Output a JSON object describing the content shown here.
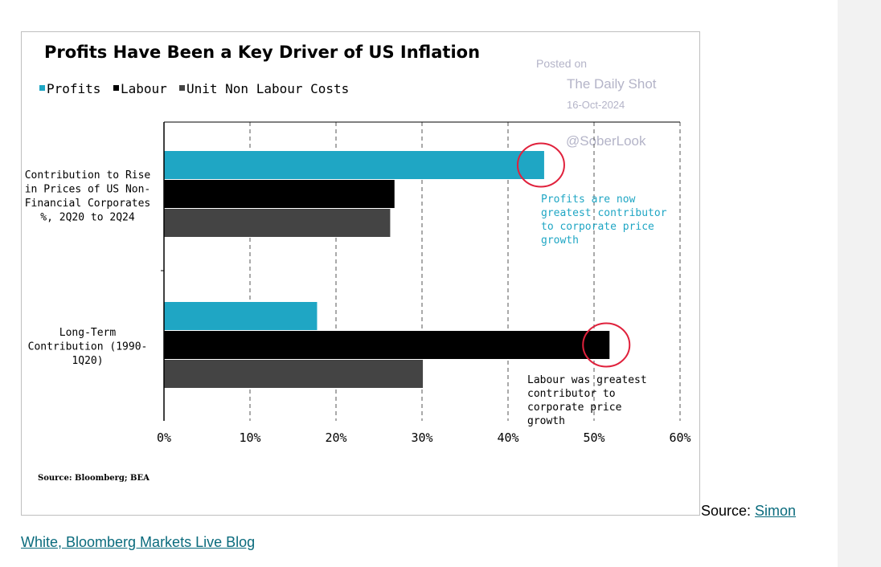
{
  "chart_data": {
    "type": "bar",
    "orientation": "horizontal",
    "title": "Profits Have Been a Key Driver of US Inflation",
    "categories": [
      [
        "Contribution to Rise",
        "in Prices of US Non-",
        "Financial Corporates",
        "%, 2Q20 to 2Q24"
      ],
      [
        "Long-Term",
        "Contribution (1990-",
        "1Q20)"
      ]
    ],
    "series": [
      {
        "name": "Profits",
        "color": "#1fa6c4",
        "values": [
          44.2,
          17.8
        ]
      },
      {
        "name": "Labour",
        "color": "#000000",
        "values": [
          26.8,
          51.8
        ]
      },
      {
        "name": "Unit Non Labour Costs",
        "color": "#444444",
        "values": [
          26.3,
          30.1
        ]
      }
    ],
    "xlim": [
      0,
      60
    ],
    "xticks": [
      0,
      10,
      20,
      30,
      40,
      50,
      60
    ],
    "xtick_labels": [
      "0%",
      "10%",
      "20%",
      "30%",
      "40%",
      "50%",
      "60%"
    ],
    "grid": "vertical dashed",
    "legend": "top-left",
    "annotations": [
      {
        "lines": [
          "Profits are now",
          "greatest contributor",
          "to corporate price",
          "growth"
        ],
        "color": "#1fa6c4"
      },
      {
        "lines": [
          "Labour was greatest",
          "contributor to",
          "corporate price",
          "growth"
        ],
        "color": "#000000"
      }
    ],
    "highlights": [
      {
        "series": "Profits",
        "category_index": 0,
        "color": "#e0213c"
      },
      {
        "series": "Labour",
        "category_index": 1,
        "color": "#e0213c"
      }
    ],
    "source": "Source: Bloomberg; BEA"
  },
  "watermark": {
    "posted_on": "Posted on",
    "site": "The Daily Shot",
    "date": "16-Oct-2024",
    "handle": "@SoberLook"
  },
  "caption": {
    "prefix": "Source: ",
    "link_part1": "Simon",
    "link_part2": "White, Bloomberg Markets Live Blog"
  }
}
